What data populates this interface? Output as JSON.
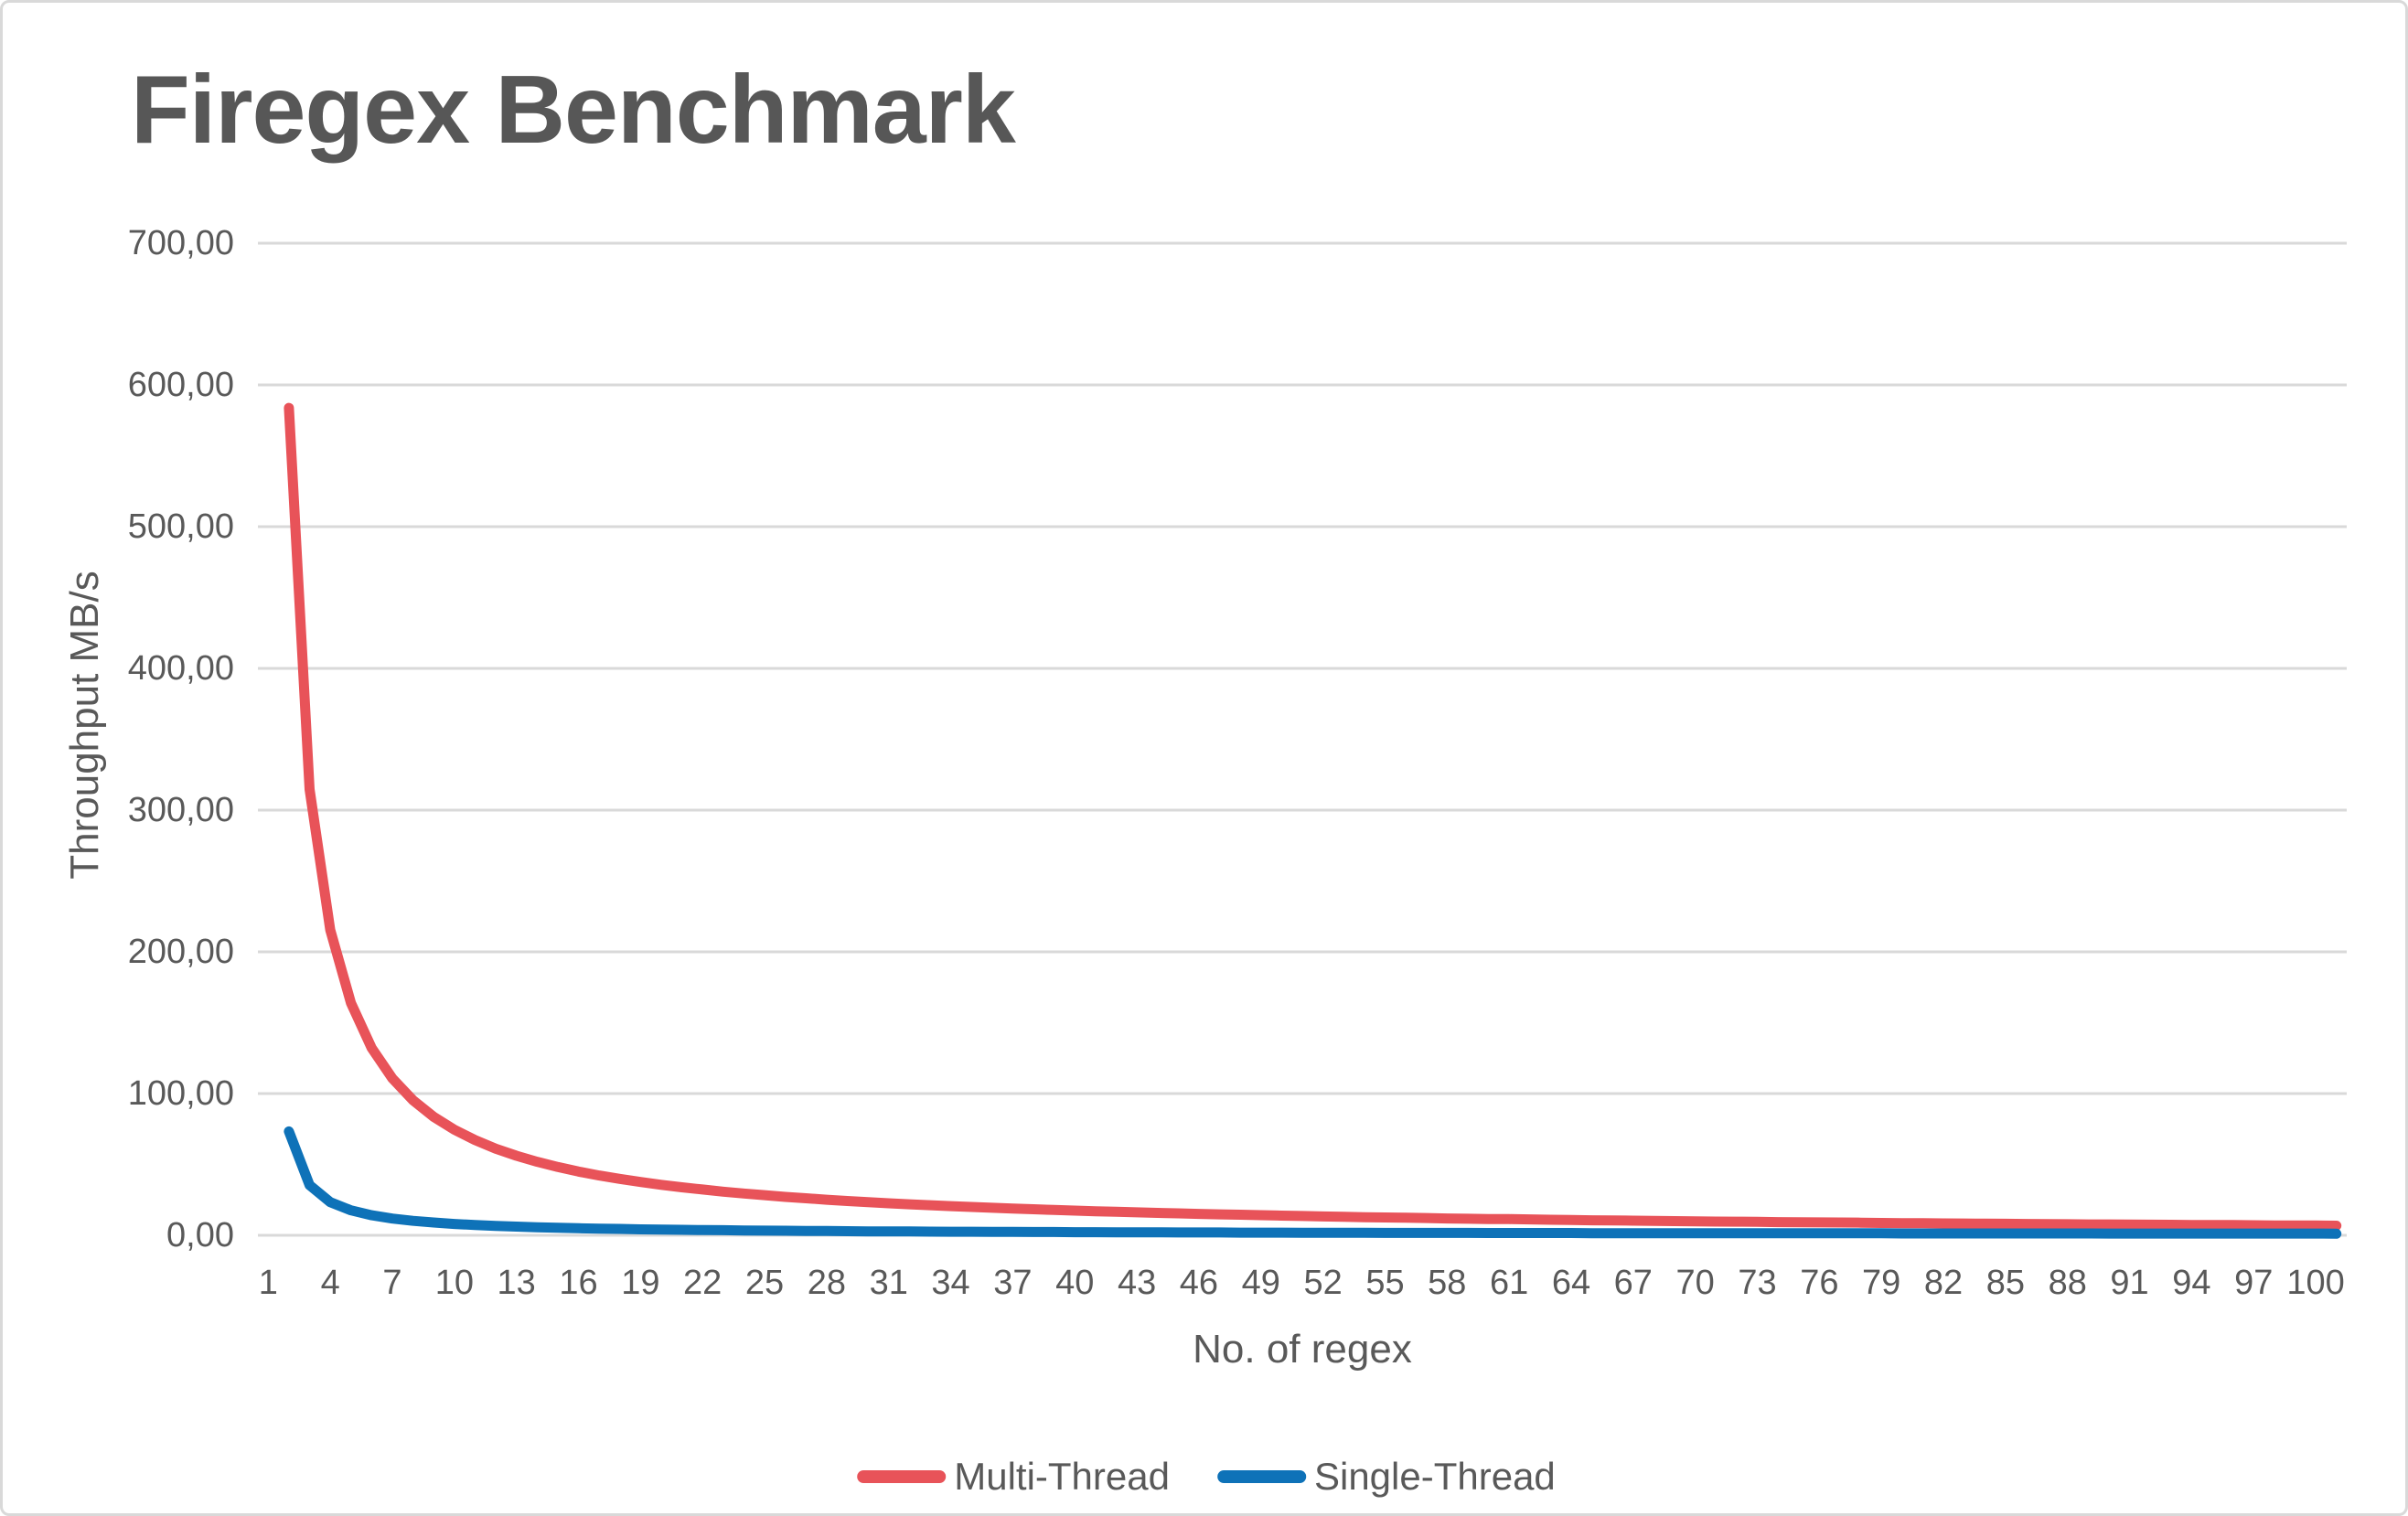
{
  "title": "Firegex Benchmark",
  "colors": {
    "accent_red": "#E85359",
    "accent_blue": "#0E72B8",
    "text_gray": "#595959",
    "title_gray": "#575757",
    "gridline_gray": "#D9D9D9",
    "frame_border": "#D9D9D9",
    "background": "#FFFFFF"
  },
  "chart_data": {
    "type": "line",
    "title": "Firegex Benchmark",
    "xlabel": "No. of regex",
    "ylabel": "Throughput MB/s",
    "ylim": [
      0,
      700
    ],
    "ytick_step": 100,
    "ytick_labels": [
      "0,00",
      "100,00",
      "200,00",
      "300,00",
      "400,00",
      "500,00",
      "600,00",
      "700,00"
    ],
    "xticks": [
      1,
      4,
      7,
      10,
      13,
      16,
      19,
      22,
      25,
      28,
      31,
      34,
      37,
      40,
      43,
      46,
      49,
      52,
      55,
      58,
      61,
      64,
      67,
      70,
      73,
      76,
      79,
      82,
      85,
      88,
      91,
      94,
      97,
      100
    ],
    "grid": "horizontal",
    "legend_position": "bottom-center",
    "x_slot_count": 101,
    "x_slot_offset": 1,
    "x": [
      1,
      2,
      3,
      4,
      5,
      6,
      7,
      8,
      9,
      10,
      11,
      12,
      13,
      14,
      15,
      16,
      17,
      18,
      19,
      20,
      21,
      22,
      23,
      24,
      25,
      26,
      27,
      28,
      29,
      30,
      31,
      32,
      33,
      34,
      35,
      36,
      37,
      38,
      39,
      40,
      41,
      42,
      43,
      44,
      45,
      46,
      47,
      48,
      49,
      50,
      51,
      52,
      53,
      54,
      55,
      56,
      57,
      58,
      59,
      60,
      61,
      62,
      63,
      64,
      65,
      66,
      67,
      68,
      69,
      70,
      71,
      72,
      73,
      74,
      75,
      76,
      77,
      78,
      79,
      80,
      81,
      82,
      83,
      84,
      85,
      86,
      87,
      88,
      89,
      90,
      91,
      92,
      93,
      94,
      95,
      96,
      97,
      98,
      99,
      100
    ],
    "series": [
      {
        "name": "Multi-Thread",
        "color": "#E85359",
        "values": [
          583.8,
          314.7,
          215.5,
          163.8,
          132.1,
          110.7,
          95.3,
          83.6,
          74.5,
          67.2,
          61.1,
          56.1,
          51.9,
          48.2,
          45.0,
          42.2,
          39.8,
          37.6,
          35.6,
          33.9,
          32.3,
          30.8,
          29.5,
          28.3,
          27.1,
          26.1,
          25.1,
          24.2,
          23.4,
          22.6,
          21.9,
          21.2,
          20.6,
          20.0,
          19.4,
          18.9,
          18.4,
          17.9,
          17.4,
          17.0,
          16.6,
          16.2,
          15.8,
          15.5,
          15.1,
          14.8,
          14.5,
          14.2,
          13.9,
          13.6,
          13.3,
          13.1,
          12.8,
          12.6,
          12.4,
          12.2,
          11.9,
          11.7,
          11.5,
          11.4,
          11.2,
          11.0,
          10.8,
          10.6,
          10.5,
          10.3,
          10.2,
          10.0,
          9.9,
          9.7,
          9.6,
          9.5,
          9.3,
          9.2,
          9.1,
          9.0,
          8.9,
          8.7,
          8.6,
          8.5,
          8.4,
          8.3,
          8.2,
          8.1,
          8.0,
          7.9,
          7.8,
          7.7,
          7.7,
          7.6,
          7.5,
          7.4,
          7.3,
          7.3,
          7.2,
          7.1,
          7.0,
          7.0,
          6.9,
          6.8
        ]
      },
      {
        "name": "Single-Thread",
        "color": "#0E72B8",
        "values": [
          73.3,
          35.4,
          23.4,
          17.6,
          14.1,
          11.8,
          10.2,
          9.0,
          8.0,
          7.3,
          6.6,
          6.1,
          5.7,
          5.3,
          5.0,
          4.7,
          4.5,
          4.2,
          4.0,
          3.9,
          3.7,
          3.6,
          3.4,
          3.3,
          3.2,
          3.1,
          3.0,
          2.9,
          2.8,
          2.7,
          2.7,
          2.6,
          2.5,
          2.5,
          2.4,
          2.4,
          2.3,
          2.3,
          2.2,
          2.2,
          2.1,
          2.1,
          2.1,
          2.0,
          2.0,
          2.0,
          1.9,
          1.9,
          1.9,
          1.8,
          1.8,
          1.8,
          1.8,
          1.7,
          1.7,
          1.7,
          1.7,
          1.7,
          1.6,
          1.6,
          1.6,
          1.6,
          1.6,
          1.5,
          1.5,
          1.5,
          1.5,
          1.5,
          1.5,
          1.5,
          1.4,
          1.4,
          1.4,
          1.4,
          1.4,
          1.4,
          1.4,
          1.4,
          1.3,
          1.3,
          1.3,
          1.3,
          1.3,
          1.3,
          1.3,
          1.3,
          1.3,
          1.3,
          1.2,
          1.2,
          1.2,
          1.2,
          1.2,
          1.2,
          1.2,
          1.2,
          1.2,
          1.2,
          1.2,
          1.1
        ]
      }
    ]
  }
}
